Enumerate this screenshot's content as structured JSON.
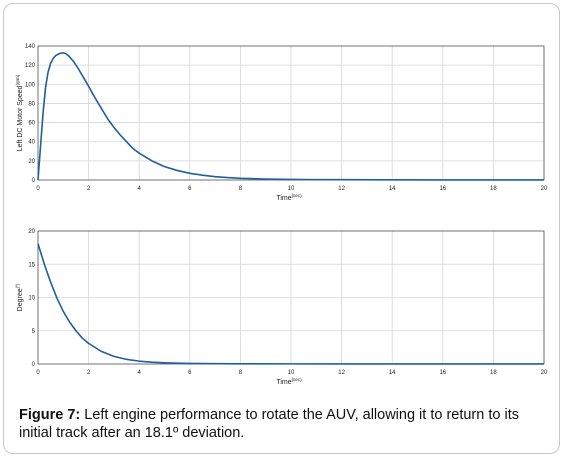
{
  "caption": {
    "label": "Figure 7:",
    "text": " Left engine performance to rotate the AUV, allowing it to return to its initial track after an 18.1º deviation."
  },
  "chart_data": [
    {
      "type": "line",
      "ylabel": "Left DC Motor Speed(rpm)",
      "xlabel": "Time(sec)",
      "xlim": [
        0,
        20
      ],
      "ylim": [
        0,
        140
      ],
      "xticks": [
        0,
        2,
        4,
        6,
        8,
        10,
        12,
        14,
        16,
        18,
        20
      ],
      "yticks": [
        0,
        20,
        40,
        60,
        80,
        100,
        120,
        140
      ],
      "grid": true,
      "line_color": "#1f5fa0",
      "series": [
        {
          "x": [
            0,
            0.1,
            0.2,
            0.3,
            0.4,
            0.5,
            0.6,
            0.7,
            0.8,
            0.9,
            1.0,
            1.1,
            1.2,
            1.4,
            1.6,
            1.8,
            2.0,
            2.25,
            2.5,
            2.75,
            3.0,
            3.25,
            3.5,
            3.75,
            4.0,
            4.5,
            5.0,
            5.5,
            6.0,
            6.5,
            7.0,
            7.5,
            8.0,
            9.0,
            10.0,
            11.0,
            12.0,
            14.0,
            16.0,
            18.0,
            20.0
          ],
          "y": [
            0,
            35,
            70,
            97,
            113,
            122,
            127,
            130,
            131.5,
            132.5,
            132.8,
            132,
            130,
            124,
            116,
            107,
            98,
            86,
            75,
            64,
            55,
            47,
            40,
            33,
            28,
            20,
            14,
            10,
            7,
            5,
            3.5,
            2.5,
            1.8,
            1,
            0.6,
            0.4,
            0.3,
            0.2,
            0.1,
            0.1,
            0.1
          ]
        }
      ]
    },
    {
      "type": "line",
      "ylabel": "Degree(º)",
      "xlabel": "Time(sec)",
      "xlim": [
        0,
        20
      ],
      "ylim": [
        0,
        20
      ],
      "xticks": [
        0,
        2,
        4,
        6,
        8,
        10,
        12,
        14,
        16,
        18,
        20
      ],
      "yticks": [
        0,
        5,
        10,
        15,
        20
      ],
      "grid": true,
      "line_color": "#1f5fa0",
      "series": [
        {
          "x": [
            0,
            0.25,
            0.5,
            0.75,
            1.0,
            1.25,
            1.5,
            1.75,
            2.0,
            2.5,
            3.0,
            3.5,
            4.0,
            4.5,
            5.0,
            5.5,
            6.0,
            7.0,
            8.0,
            10.0,
            12.0,
            14.0,
            16.0,
            18.0,
            20.0
          ],
          "y": [
            18.1,
            15.0,
            12.3,
            9.9,
            7.9,
            6.3,
            5.0,
            3.9,
            3.1,
            1.9,
            1.15,
            0.7,
            0.43,
            0.28,
            0.18,
            0.12,
            0.08,
            0.05,
            0.03,
            0.02,
            0.01,
            0.01,
            0.01,
            0.01,
            0.01
          ]
        }
      ]
    }
  ]
}
